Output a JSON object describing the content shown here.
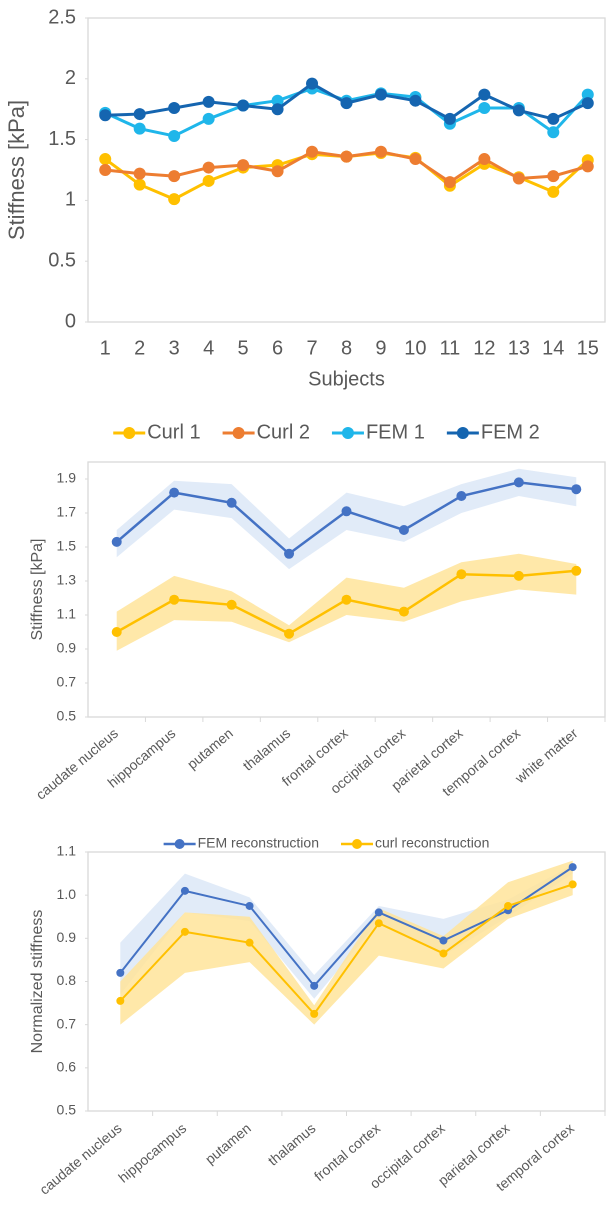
{
  "chart_data": [
    {
      "type": "line",
      "x_label": "Subjects",
      "y_label": "Stiffness [kPa]",
      "categories": [
        "1",
        "2",
        "3",
        "4",
        "5",
        "6",
        "7",
        "8",
        "9",
        "10",
        "11",
        "12",
        "13",
        "14",
        "15"
      ],
      "ylim": [
        0,
        2.5
      ],
      "yticks": [
        0,
        0.5,
        1,
        1.5,
        2,
        2.5
      ],
      "grid": false,
      "legend": "bottom",
      "series": [
        {
          "name": "Curl 1",
          "color": "#ffc000",
          "values": [
            1.34,
            1.13,
            1.01,
            1.16,
            1.27,
            1.29,
            1.38,
            1.36,
            1.39,
            1.35,
            1.12,
            1.3,
            1.19,
            1.07,
            1.33
          ]
        },
        {
          "name": "Curl 2",
          "color": "#ed7d31",
          "values": [
            1.25,
            1.22,
            1.2,
            1.27,
            1.29,
            1.24,
            1.4,
            1.36,
            1.4,
            1.34,
            1.15,
            1.34,
            1.18,
            1.2,
            1.28
          ]
        },
        {
          "name": "FEM 1",
          "color": "#1fb6ea",
          "values": [
            1.72,
            1.59,
            1.53,
            1.67,
            1.78,
            1.82,
            1.92,
            1.82,
            1.88,
            1.85,
            1.63,
            1.76,
            1.76,
            1.56,
            1.87
          ]
        },
        {
          "name": "FEM 2",
          "color": "#1565b0",
          "values": [
            1.7,
            1.71,
            1.76,
            1.81,
            1.78,
            1.75,
            1.96,
            1.8,
            1.87,
            1.82,
            1.67,
            1.87,
            1.74,
            1.67,
            1.8
          ]
        }
      ]
    },
    {
      "type": "line",
      "y_label": "Stiffness [kPa]",
      "categories": [
        "caudate nucleus",
        "hippocampus",
        "putamen",
        "thalamus",
        "frontal cortex",
        "occipital cortex",
        "parietal cortex",
        "temporal cortex",
        "white matter"
      ],
      "ylim": [
        0.5,
        2.0
      ],
      "yticks": [
        0.5,
        0.7,
        0.9,
        1.1,
        1.3,
        1.5,
        1.7,
        1.9
      ],
      "grid": false,
      "legend": "bottom",
      "series": [
        {
          "name": "FEM reconstruction",
          "color": "#4472c4",
          "band_color": "#dce8f7",
          "values": [
            1.53,
            1.82,
            1.76,
            1.46,
            1.71,
            1.6,
            1.8,
            1.88,
            1.84
          ],
          "upper": [
            1.6,
            1.89,
            1.87,
            1.55,
            1.82,
            1.74,
            1.87,
            1.96,
            1.91
          ],
          "lower": [
            1.44,
            1.72,
            1.67,
            1.37,
            1.6,
            1.53,
            1.7,
            1.8,
            1.74
          ]
        },
        {
          "name": "curl reconstruction",
          "color": "#ffc000",
          "band_color": "#ffe49a",
          "values": [
            1.0,
            1.19,
            1.16,
            0.99,
            1.19,
            1.12,
            1.34,
            1.33,
            1.36
          ],
          "upper": [
            1.12,
            1.33,
            1.24,
            1.04,
            1.32,
            1.26,
            1.41,
            1.46,
            1.4
          ],
          "lower": [
            0.89,
            1.07,
            1.06,
            0.94,
            1.1,
            1.06,
            1.18,
            1.25,
            1.22
          ]
        }
      ]
    },
    {
      "type": "line",
      "y_label": "Normalized stiffness",
      "categories": [
        "caudate nucleus",
        "hippocampus",
        "putamen",
        "thalamus",
        "frontal cortex",
        "occipital cortex",
        "parietal cortex",
        "temporal cortex"
      ],
      "ylim": [
        0.5,
        1.1
      ],
      "yticks": [
        0.5,
        0.6,
        0.7,
        0.8,
        0.9,
        {
          "value": 1,
          "label": "1.0"
        },
        1.1
      ],
      "grid": false,
      "series": [
        {
          "color": "#4472c4",
          "band_color": "#dce8f7",
          "values": [
            0.82,
            1.01,
            0.975,
            0.79,
            0.96,
            0.895,
            0.965,
            1.065
          ],
          "upper": [
            0.89,
            1.05,
            0.995,
            0.815,
            0.975,
            0.945,
            0.99,
            1.07
          ],
          "lower": [
            0.77,
            0.96,
            0.94,
            0.76,
            0.94,
            0.86,
            0.95,
            1.05
          ]
        },
        {
          "color": "#ffc000",
          "band_color": "#ffe49a",
          "values": [
            0.755,
            0.915,
            0.89,
            0.725,
            0.935,
            0.865,
            0.975,
            1.025
          ],
          "upper": [
            0.8,
            0.96,
            0.95,
            0.745,
            0.97,
            0.905,
            1.03,
            1.08
          ],
          "lower": [
            0.7,
            0.82,
            0.845,
            0.7,
            0.86,
            0.83,
            0.945,
            1.0
          ]
        }
      ]
    }
  ]
}
